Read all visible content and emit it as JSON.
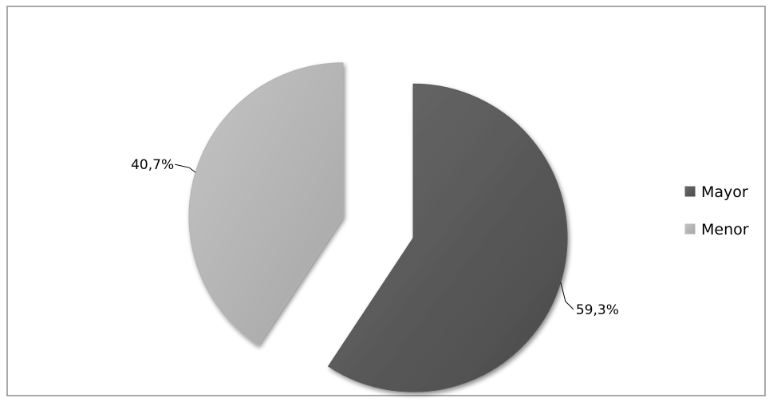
{
  "chart_data": {
    "type": "pie",
    "categories": [
      "Mayor",
      "Menor"
    ],
    "values": [
      59.3,
      40.7
    ],
    "data_labels": [
      "59,3%",
      "40,7%"
    ],
    "colors": [
      "#595959",
      "#b3b3b3"
    ],
    "legend_position": "right",
    "exploded": true
  }
}
